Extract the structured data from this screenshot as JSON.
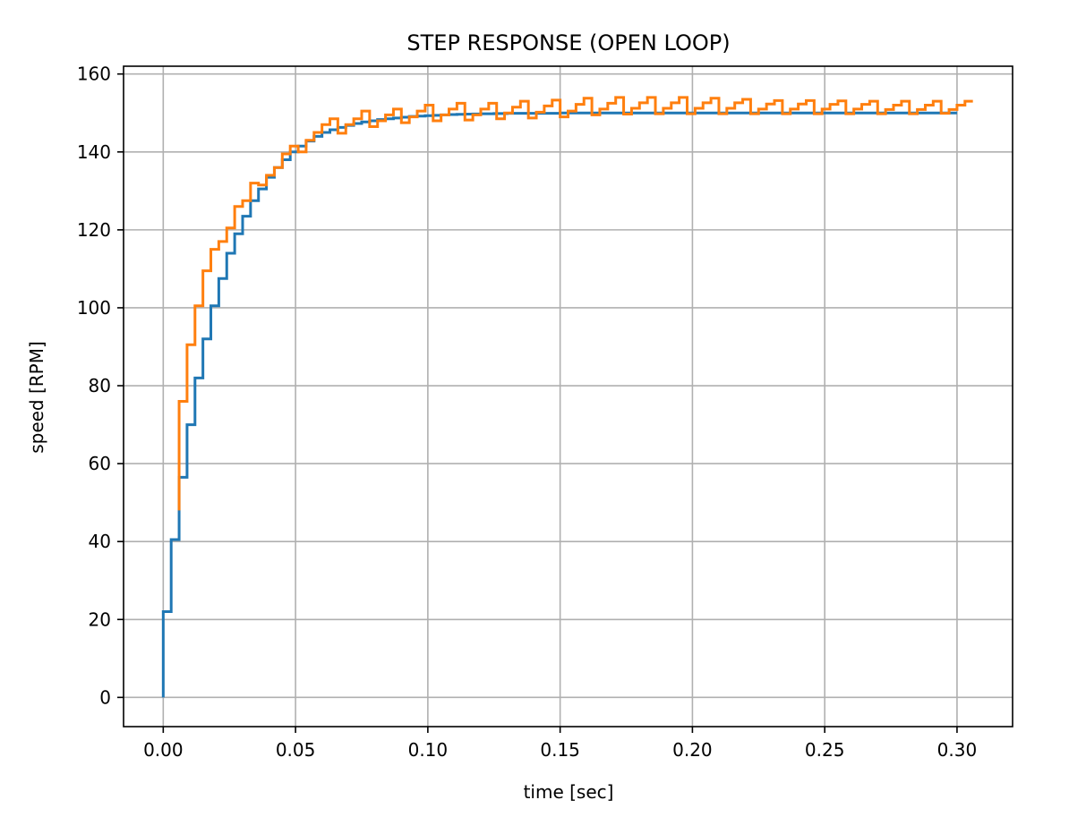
{
  "chart_data": {
    "type": "line",
    "title": "STEP RESPONSE (OPEN LOOP)",
    "xlabel": "time [sec]",
    "ylabel": "speed [RPM]",
    "xlim": [
      -0.015,
      0.321
    ],
    "ylim": [
      -7.5,
      162
    ],
    "grid": true,
    "legend": "none",
    "drawstyle": "steps-post",
    "x_ticks": [
      0.0,
      0.05,
      0.1,
      0.15,
      0.2,
      0.25,
      0.3
    ],
    "x_tick_labels": [
      "0.00",
      "0.05",
      "0.10",
      "0.15",
      "0.20",
      "0.25",
      "0.30"
    ],
    "y_ticks": [
      0,
      20,
      40,
      60,
      80,
      100,
      120,
      140,
      160
    ],
    "y_tick_labels": [
      "0",
      "20",
      "40",
      "60",
      "80",
      "100",
      "120",
      "140",
      "160"
    ],
    "colors": {
      "series_1": "#1f77b4",
      "series_2": "#ff7f0e",
      "grid": "#b0b0b0"
    },
    "series": [
      {
        "color": "#1f77b4",
        "x": [
          0.0,
          0.003,
          0.006,
          0.009,
          0.012,
          0.015,
          0.018,
          0.021,
          0.024,
          0.027,
          0.03,
          0.033,
          0.036,
          0.039,
          0.042,
          0.045,
          0.048,
          0.051,
          0.054,
          0.057,
          0.06,
          0.063,
          0.066,
          0.069,
          0.072,
          0.075,
          0.078,
          0.081,
          0.084,
          0.087,
          0.09,
          0.093,
          0.096,
          0.099,
          0.102,
          0.105,
          0.108,
          0.111,
          0.114,
          0.117,
          0.12,
          0.125,
          0.13,
          0.14,
          0.15,
          0.16,
          0.17,
          0.18,
          0.19,
          0.2,
          0.21,
          0.22,
          0.23,
          0.24,
          0.25,
          0.26,
          0.27,
          0.28,
          0.29,
          0.3
        ],
        "y": [
          22,
          40.5,
          56.5,
          70,
          82,
          92,
          100.5,
          107.5,
          114,
          119,
          123.5,
          127.5,
          130.5,
          133.5,
          136,
          138,
          140,
          141.5,
          142.8,
          144,
          145,
          145.7,
          146.3,
          146.8,
          147.3,
          147.7,
          148,
          148.3,
          148.5,
          148.7,
          148.9,
          149.1,
          149.2,
          149.3,
          149.4,
          149.5,
          149.6,
          149.65,
          149.7,
          149.75,
          149.8,
          149.85,
          149.9,
          149.9,
          150,
          150,
          150,
          150,
          150,
          150,
          150,
          150,
          150,
          150,
          150,
          150,
          150,
          150,
          150,
          150
        ]
      },
      {
        "color": "#ff7f0e",
        "x": [
          0.006,
          0.009,
          0.012,
          0.015,
          0.018,
          0.021,
          0.024,
          0.027,
          0.03,
          0.033,
          0.036,
          0.039,
          0.042,
          0.045,
          0.048,
          0.051,
          0.054,
          0.057,
          0.06,
          0.063,
          0.066,
          0.069,
          0.072,
          0.075,
          0.078,
          0.081,
          0.084,
          0.087,
          0.09,
          0.093,
          0.096,
          0.099,
          0.102,
          0.105,
          0.108,
          0.111,
          0.114,
          0.117,
          0.12,
          0.123,
          0.126,
          0.129,
          0.132,
          0.135,
          0.138,
          0.141,
          0.144,
          0.147,
          0.15,
          0.153,
          0.156,
          0.159,
          0.162,
          0.165,
          0.168,
          0.171,
          0.174,
          0.177,
          0.18,
          0.183,
          0.186,
          0.189,
          0.192,
          0.195,
          0.198,
          0.201,
          0.204,
          0.207,
          0.21,
          0.213,
          0.216,
          0.219,
          0.222,
          0.225,
          0.228,
          0.231,
          0.234,
          0.237,
          0.24,
          0.243,
          0.246,
          0.249,
          0.252,
          0.255,
          0.258,
          0.261,
          0.264,
          0.267,
          0.27,
          0.273,
          0.276,
          0.279,
          0.282,
          0.285,
          0.288,
          0.291,
          0.294,
          0.297,
          0.3,
          0.303
        ],
        "y": [
          76,
          90.5,
          100.5,
          109.5,
          115,
          117,
          120.5,
          126,
          127.5,
          132,
          131.5,
          134,
          136,
          139.5,
          141.5,
          140,
          143,
          145,
          147,
          148.5,
          144.8,
          147,
          148.5,
          150.5,
          146.5,
          148,
          149.5,
          151,
          147.5,
          149,
          150.5,
          152,
          148,
          149.5,
          151,
          152.5,
          148.2,
          149.5,
          151,
          152.5,
          148.5,
          150,
          151.5,
          153,
          148.7,
          150.2,
          151.8,
          153.3,
          149,
          150.5,
          152.2,
          153.8,
          149.5,
          151,
          152.5,
          154,
          149.7,
          151.2,
          152.6,
          154,
          149.8,
          151.2,
          152.6,
          154,
          149.8,
          151.2,
          152.6,
          153.8,
          149.8,
          151.2,
          152.6,
          153.5,
          149.8,
          151,
          152.3,
          153.2,
          149.8,
          151,
          152.3,
          153.2,
          149.8,
          151,
          152.2,
          153.1,
          149.8,
          151,
          152.2,
          153,
          149.8,
          150.9,
          152,
          153,
          149.8,
          150.9,
          152,
          153,
          149.9,
          150.9,
          152,
          153
        ]
      }
    ]
  }
}
